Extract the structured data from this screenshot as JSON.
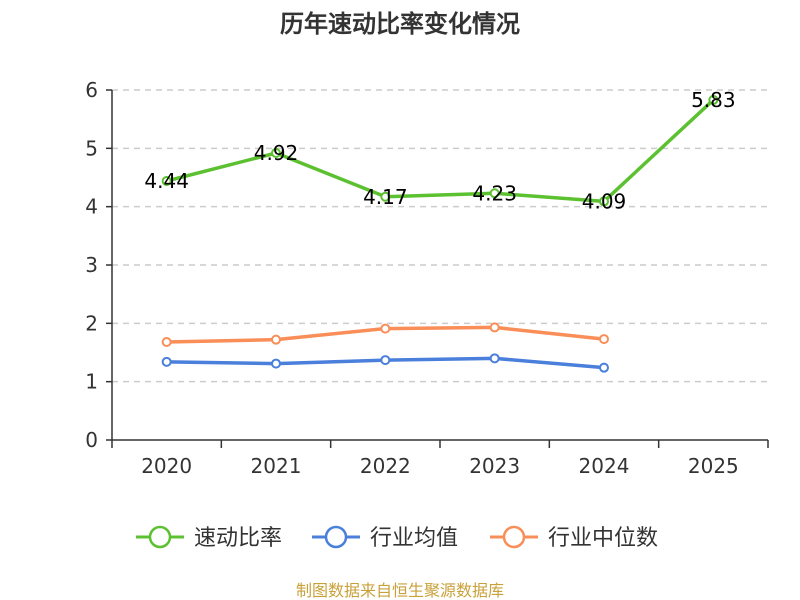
{
  "chart_data": {
    "type": "line",
    "title": "历年速动比率变化情况",
    "categories": [
      "2020",
      "2021",
      "2022",
      "2023",
      "2024",
      "2025"
    ],
    "ylim": [
      0,
      6
    ],
    "yticks": [
      "0",
      "1",
      "2",
      "3",
      "4",
      "5",
      "6"
    ],
    "grid": true,
    "legend_position": "bottom",
    "series": [
      {
        "name": "速动比率",
        "color": "#5cc130",
        "values": [
          4.44,
          4.92,
          4.17,
          4.23,
          4.09,
          5.83
        ],
        "labels": [
          "4.44",
          "4.92",
          "4.17",
          "4.23",
          "4.09",
          "5.83"
        ]
      },
      {
        "name": "行业均值",
        "color": "#4a7fdb",
        "values": [
          1.34,
          1.31,
          1.37,
          1.4,
          1.24,
          null
        ]
      },
      {
        "name": "行业中位数",
        "color": "#f98e58",
        "values": [
          1.68,
          1.72,
          1.91,
          1.93,
          1.73,
          null
        ]
      }
    ],
    "source": "制图数据来自恒生聚源数据库"
  }
}
